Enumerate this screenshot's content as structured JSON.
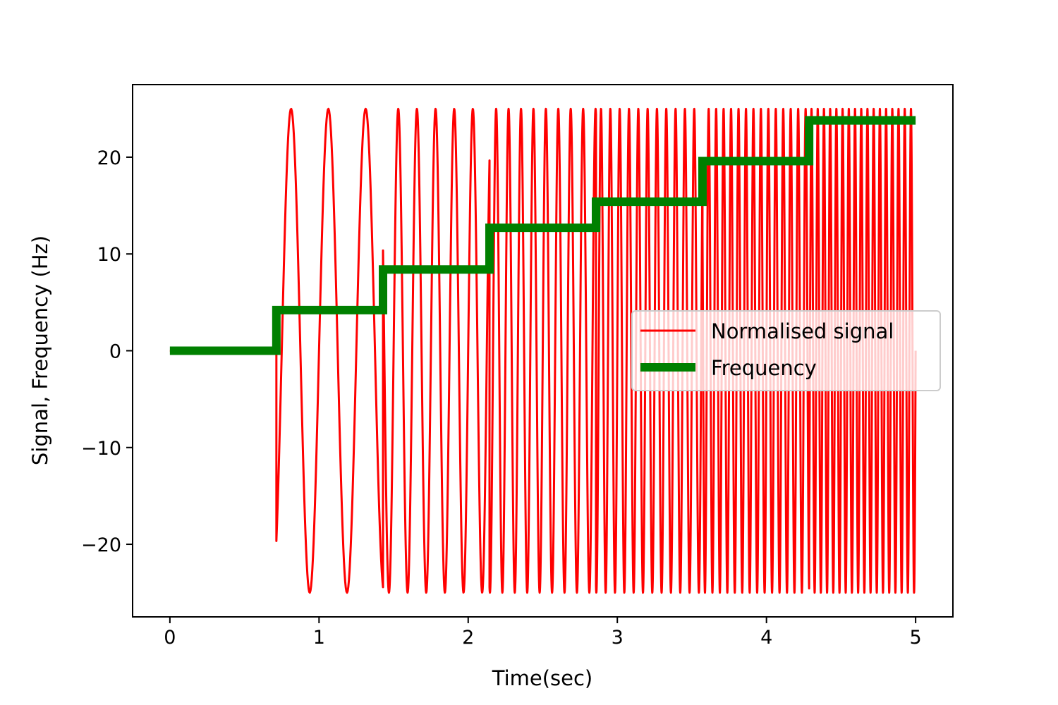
{
  "chart_data": {
    "type": "line",
    "xlabel": "Time(sec)",
    "ylabel": "Signal, Frequency (Hz)",
    "xlim": [
      -0.25,
      5.25
    ],
    "ylim": [
      -27.5,
      27.5
    ],
    "xticks": [
      0,
      1,
      2,
      3,
      4,
      5
    ],
    "xtick_labels": [
      "0",
      "1",
      "2",
      "3",
      "4",
      "5"
    ],
    "yticks": [
      -20,
      -10,
      0,
      10,
      20
    ],
    "ytick_labels": [
      "−20",
      "−10",
      "0",
      "10",
      "20"
    ],
    "grid": false,
    "legend_position": "center-right",
    "series": [
      {
        "name": "Normalised signal",
        "color": "#ff0000",
        "style": "thin-line",
        "amplitude": 25,
        "segments": [
          {
            "t_start": 0.0,
            "t_end": 0.714,
            "frequency": 0
          },
          {
            "t_start": 0.714,
            "t_end": 1.429,
            "frequency": 4
          },
          {
            "t_start": 1.429,
            "t_end": 2.143,
            "frequency": 8
          },
          {
            "t_start": 2.143,
            "t_end": 2.857,
            "frequency": 12
          },
          {
            "t_start": 2.857,
            "t_end": 3.571,
            "frequency": 16
          },
          {
            "t_start": 3.571,
            "t_end": 4.286,
            "frequency": 20
          },
          {
            "t_start": 4.286,
            "t_end": 5.0,
            "frequency": 24
          }
        ]
      },
      {
        "name": "Frequency",
        "color": "#008000",
        "style": "thick-step",
        "x": [
          0.0,
          0.714,
          0.714,
          1.429,
          1.429,
          2.143,
          2.143,
          2.857,
          2.857,
          3.571,
          3.571,
          4.286,
          4.286,
          5.0
        ],
        "y": [
          0,
          0,
          4.2,
          4.2,
          8.4,
          8.4,
          12.7,
          12.7,
          15.4,
          15.4,
          19.6,
          19.6,
          23.8,
          23.8
        ]
      }
    ]
  }
}
